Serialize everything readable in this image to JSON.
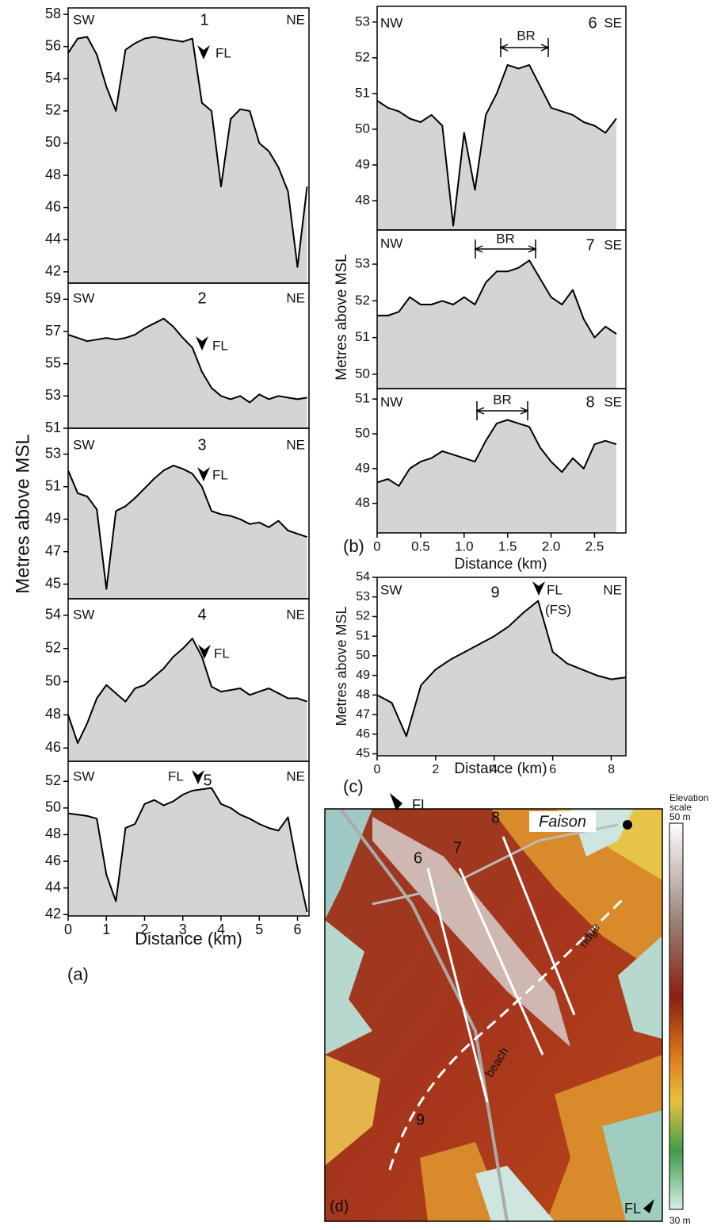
{
  "chart_data": [
    {
      "type": "line",
      "annotations": [
        "SW",
        "1",
        "NE",
        "FL"
      ],
      "x": [
        0,
        0.25,
        0.5,
        0.75,
        1,
        1.25,
        1.5,
        1.75,
        2,
        2.25,
        2.5,
        2.75,
        3,
        3.25,
        3.5,
        3.75,
        4,
        4.25,
        4.5,
        4.75,
        5,
        5.25,
        5.5,
        5.75,
        6,
        6.25
      ],
      "values": [
        55.6,
        56.5,
        56.6,
        55.5,
        53.5,
        52.0,
        55.8,
        56.2,
        56.5,
        56.6,
        56.5,
        56.4,
        56.3,
        56.5,
        52.5,
        52.0,
        47.3,
        51.5,
        52.1,
        52.0,
        50.0,
        49.5,
        48.5,
        47.0,
        42.3,
        47.3
      ],
      "xlim": [
        0,
        6.3
      ],
      "ylim": [
        41.3,
        58.4
      ],
      "yticks": [
        42,
        44,
        46,
        48,
        50,
        52,
        54,
        56,
        58
      ]
    },
    {
      "type": "line",
      "annotations": [
        "SW",
        "2",
        "NE",
        "FL"
      ],
      "x": [
        0,
        0.25,
        0.5,
        0.75,
        1,
        1.25,
        1.5,
        1.75,
        2,
        2.25,
        2.5,
        2.75,
        3,
        3.25,
        3.5,
        3.75,
        4,
        4.25,
        4.5,
        4.75,
        5,
        5.25,
        5.5,
        5.75,
        6,
        6.25
      ],
      "values": [
        56.8,
        56.6,
        56.4,
        56.5,
        56.6,
        56.5,
        56.6,
        56.8,
        57.2,
        57.5,
        57.8,
        57.3,
        56.6,
        56.0,
        54.5,
        53.5,
        53.0,
        52.8,
        53.0,
        52.6,
        53.1,
        52.8,
        53.0,
        52.9,
        52.8,
        52.9
      ],
      "xlim": [
        0,
        6.3
      ],
      "ylim": [
        51,
        60
      ],
      "yticks": [
        51,
        53,
        55,
        57,
        59
      ]
    },
    {
      "type": "line",
      "annotations": [
        "SW",
        "3",
        "NE",
        "FL"
      ],
      "ylabel": "Metres above MSL",
      "x": [
        0,
        0.25,
        0.5,
        0.75,
        1,
        1.25,
        1.5,
        1.75,
        2,
        2.25,
        2.5,
        2.75,
        3,
        3.25,
        3.5,
        3.75,
        4,
        4.25,
        4.5,
        4.75,
        5,
        5.25,
        5.5,
        5.75,
        6,
        6.25
      ],
      "values": [
        52.0,
        50.6,
        50.4,
        49.6,
        44.7,
        49.5,
        49.8,
        50.3,
        50.9,
        51.5,
        52.0,
        52.3,
        52.1,
        51.8,
        51.0,
        49.5,
        49.3,
        49.2,
        49.0,
        48.7,
        48.8,
        48.5,
        48.9,
        48.3,
        48.1,
        47.9
      ],
      "xlim": [
        0,
        6.3
      ],
      "ylim": [
        44.1,
        54.6
      ],
      "yticks": [
        45,
        47,
        49,
        51,
        53
      ]
    },
    {
      "type": "line",
      "annotations": [
        "SW",
        "4",
        "NE",
        "FL"
      ],
      "x": [
        0,
        0.25,
        0.5,
        0.75,
        1,
        1.25,
        1.5,
        1.75,
        2,
        2.25,
        2.5,
        2.75,
        3,
        3.25,
        3.5,
        3.75,
        4,
        4.25,
        4.5,
        4.75,
        5,
        5.25,
        5.5,
        5.75,
        6,
        6.25
      ],
      "values": [
        48.0,
        46.3,
        47.5,
        49.0,
        49.8,
        49.3,
        48.8,
        49.6,
        49.8,
        50.3,
        50.8,
        51.5,
        52.0,
        52.6,
        51.5,
        49.7,
        49.4,
        49.5,
        49.6,
        49.2,
        49.4,
        49.6,
        49.3,
        49.0,
        49.0,
        48.8
      ],
      "xlim": [
        0,
        6.3
      ],
      "ylim": [
        45.2,
        55
      ],
      "yticks": [
        46,
        48,
        50,
        52,
        54
      ]
    },
    {
      "type": "line",
      "annotations": [
        "SW",
        "FL",
        "5",
        "NE"
      ],
      "xlabel": "Distance (km)",
      "panel_label": "(a)",
      "x": [
        0,
        0.25,
        0.5,
        0.75,
        1,
        1.25,
        1.5,
        1.75,
        2,
        2.25,
        2.5,
        2.75,
        3,
        3.25,
        3.5,
        3.75,
        4,
        4.25,
        4.5,
        4.75,
        5,
        5.25,
        5.5,
        5.75,
        6,
        6.25
      ],
      "values": [
        49.6,
        49.5,
        49.4,
        49.2,
        45.0,
        43.0,
        48.5,
        48.8,
        50.3,
        50.6,
        50.2,
        50.5,
        51.0,
        51.3,
        51.4,
        51.5,
        50.3,
        50.0,
        49.5,
        49.2,
        48.8,
        48.5,
        48.3,
        49.3,
        45.5,
        42.2
      ],
      "xlim": [
        0,
        6.3
      ],
      "ylim": [
        41.9,
        53.5
      ],
      "yticks": [
        42,
        44,
        46,
        48,
        50,
        52
      ],
      "xticks": [
        0,
        1,
        2,
        3,
        4,
        5,
        6
      ]
    },
    {
      "type": "line",
      "annotations": [
        "NW",
        "BR",
        "6",
        "SE"
      ],
      "x": [
        0,
        0.125,
        0.25,
        0.375,
        0.5,
        0.625,
        0.75,
        0.875,
        1,
        1.125,
        1.25,
        1.375,
        1.5,
        1.625,
        1.75,
        1.875,
        2,
        2.125,
        2.25,
        2.375,
        2.5,
        2.625,
        2.75
      ],
      "values": [
        50.8,
        50.6,
        50.5,
        50.3,
        50.2,
        50.4,
        50.1,
        47.3,
        49.9,
        48.3,
        50.4,
        51.0,
        51.8,
        51.7,
        51.8,
        51.2,
        50.6,
        50.5,
        50.4,
        50.2,
        50.1,
        49.9,
        50.3
      ],
      "xlim": [
        0,
        2.86
      ],
      "ylim": [
        47.18,
        53.44
      ],
      "yticks": [
        48,
        49,
        50,
        51,
        52,
        53
      ]
    },
    {
      "type": "line",
      "annotations": [
        "NW",
        "BR",
        "7",
        "SE"
      ],
      "ylabel": "Metres above MSL",
      "x": [
        0,
        0.125,
        0.25,
        0.375,
        0.5,
        0.625,
        0.75,
        0.875,
        1,
        1.125,
        1.25,
        1.375,
        1.5,
        1.625,
        1.75,
        1.875,
        2,
        2.125,
        2.25,
        2.375,
        2.5,
        2.625,
        2.75
      ],
      "values": [
        51.6,
        51.6,
        51.7,
        52.1,
        51.9,
        51.9,
        52.0,
        51.9,
        52.1,
        51.9,
        52.5,
        52.8,
        52.8,
        52.9,
        53.1,
        52.6,
        52.1,
        51.9,
        52.3,
        51.5,
        51.0,
        51.3,
        51.1
      ],
      "xlim": [
        0,
        2.86
      ],
      "ylim": [
        49.61,
        53.93
      ],
      "yticks": [
        50,
        51,
        52,
        53
      ]
    },
    {
      "type": "line",
      "annotations": [
        "NW",
        "BR",
        "8",
        "SE"
      ],
      "xlabel": "Distance (km)",
      "panel_label": "(b)",
      "x": [
        0,
        0.125,
        0.25,
        0.375,
        0.5,
        0.625,
        0.75,
        0.875,
        1,
        1.125,
        1.25,
        1.375,
        1.5,
        1.625,
        1.75,
        1.875,
        2,
        2.125,
        2.25,
        2.375,
        2.5,
        2.625,
        2.75
      ],
      "values": [
        48.6,
        48.7,
        48.5,
        49.0,
        49.2,
        49.3,
        49.5,
        49.4,
        49.3,
        49.2,
        49.8,
        50.3,
        50.4,
        50.3,
        50.2,
        49.6,
        49.2,
        48.9,
        49.3,
        49.0,
        49.7,
        49.8,
        49.7
      ],
      "xlim": [
        0,
        2.86
      ],
      "ylim": [
        47.15,
        51.3
      ],
      "yticks": [
        48,
        49,
        50,
        51
      ],
      "xticks": [
        0,
        0.5,
        {
          "value": 1,
          "label": "1.0"
        },
        1.5,
        {
          "value": 2,
          "label": "2.0"
        },
        2.5
      ]
    },
    {
      "type": "line",
      "annotations": [
        "SW",
        "9",
        "FL",
        "(FS)",
        "NE"
      ],
      "ylabel": "Metres above MSL",
      "xlabel": "Distance (km)",
      "panel_label": "(c)",
      "x": [
        0,
        0.5,
        1,
        1.5,
        2,
        2.5,
        3,
        3.5,
        4,
        4.5,
        5,
        5.5,
        6,
        6.5,
        7,
        7.5,
        8,
        8.5
      ],
      "values": [
        48.0,
        47.6,
        45.9,
        48.5,
        49.3,
        49.8,
        50.2,
        50.6,
        51.0,
        51.5,
        52.2,
        52.8,
        50.2,
        49.6,
        49.3,
        49.0,
        48.8,
        48.9
      ],
      "xlim": [
        0,
        8.5
      ],
      "ylim": [
        44.9,
        54
      ],
      "yticks": [
        45,
        46,
        47,
        48,
        49,
        50,
        51,
        52,
        53,
        54
      ],
      "xticks": [
        0,
        2,
        4,
        6,
        8
      ]
    }
  ],
  "map": {
    "panel_label": "(d)",
    "labels": [
      "FL",
      "Faison",
      "8",
      "7",
      "6",
      "9",
      "ridge",
      "beach",
      "FL"
    ],
    "scale_title": [
      "Elevation",
      "scale"
    ],
    "scale_max": "50 m",
    "scale_min": "30 m"
  }
}
